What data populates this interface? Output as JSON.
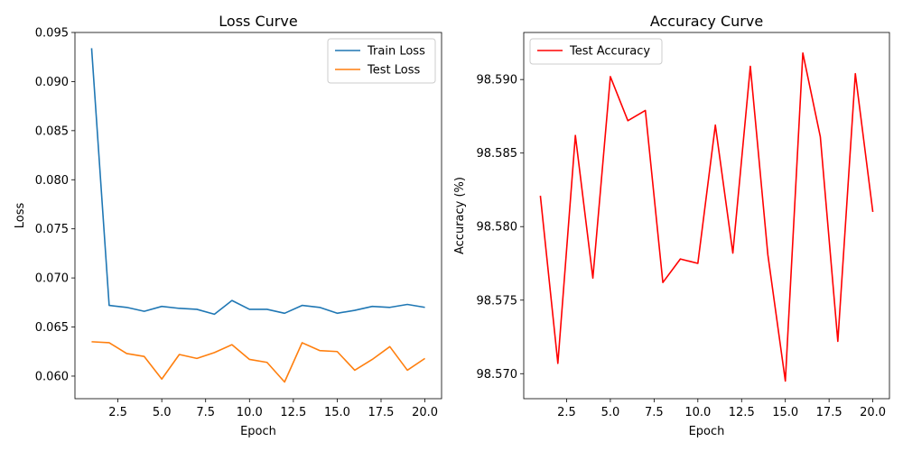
{
  "chart_data": [
    {
      "type": "line",
      "title": "Loss Curve",
      "xlabel": "Epoch",
      "ylabel": "Loss",
      "xlim": [
        0.05,
        20.95
      ],
      "ylim": [
        0.0577,
        0.095
      ],
      "xticks": [
        2.5,
        5.0,
        7.5,
        10.0,
        12.5,
        15.0,
        17.5,
        20.0
      ],
      "xticklabels": [
        "2.5",
        "5.0",
        "7.5",
        "10.0",
        "12.5",
        "15.0",
        "17.5",
        "20.0"
      ],
      "yticks": [
        0.06,
        0.065,
        0.07,
        0.075,
        0.08,
        0.085,
        0.09,
        0.095
      ],
      "yticklabels": [
        "0.060",
        "0.065",
        "0.070",
        "0.075",
        "0.080",
        "0.085",
        "0.090",
        "0.095"
      ],
      "grid": false,
      "legend": "top-right",
      "x": [
        1,
        2,
        3,
        4,
        5,
        6,
        7,
        8,
        9,
        10,
        11,
        12,
        13,
        14,
        15,
        16,
        17,
        18,
        19,
        20
      ],
      "series": [
        {
          "name": "Train Loss",
          "color": "#1f77b4",
          "values": [
            0.0934,
            0.0672,
            0.067,
            0.0666,
            0.0671,
            0.0669,
            0.0668,
            0.0663,
            0.0677,
            0.0668,
            0.0668,
            0.0664,
            0.0672,
            0.067,
            0.0664,
            0.0667,
            0.0671,
            0.067,
            0.0673,
            0.067
          ]
        },
        {
          "name": "Test Loss",
          "color": "#ff7f0e",
          "values": [
            0.0635,
            0.0634,
            0.0623,
            0.062,
            0.0597,
            0.0622,
            0.0618,
            0.0624,
            0.0632,
            0.0617,
            0.0614,
            0.0594,
            0.0634,
            0.0626,
            0.0625,
            0.0606,
            0.0617,
            0.063,
            0.0606,
            0.0618
          ]
        }
      ]
    },
    {
      "type": "line",
      "title": "Accuracy Curve",
      "xlabel": "Epoch",
      "ylabel": "Accuracy (%)",
      "xlim": [
        0.05,
        20.95
      ],
      "ylim": [
        98.5683,
        98.5932
      ],
      "xticks": [
        2.5,
        5.0,
        7.5,
        10.0,
        12.5,
        15.0,
        17.5,
        20.0
      ],
      "xticklabels": [
        "2.5",
        "5.0",
        "7.5",
        "10.0",
        "12.5",
        "15.0",
        "17.5",
        "20.0"
      ],
      "yticks": [
        98.57,
        98.575,
        98.58,
        98.585,
        98.59
      ],
      "yticklabels": [
        "98.570",
        "98.575",
        "98.580",
        "98.585",
        "98.590"
      ],
      "grid": false,
      "legend": "top-left",
      "x": [
        1,
        2,
        3,
        4,
        5,
        6,
        7,
        8,
        9,
        10,
        11,
        12,
        13,
        14,
        15,
        16,
        17,
        18,
        19,
        20
      ],
      "series": [
        {
          "name": "Test Accuracy",
          "color": "#ff0000",
          "values": [
            98.5821,
            98.5707,
            98.5862,
            98.5765,
            98.5902,
            98.5872,
            98.5879,
            98.5762,
            98.5778,
            98.5775,
            98.5869,
            98.5782,
            98.5909,
            98.5781,
            98.5695,
            98.5918,
            98.5861,
            98.5722,
            98.5904,
            98.581
          ]
        }
      ]
    }
  ]
}
